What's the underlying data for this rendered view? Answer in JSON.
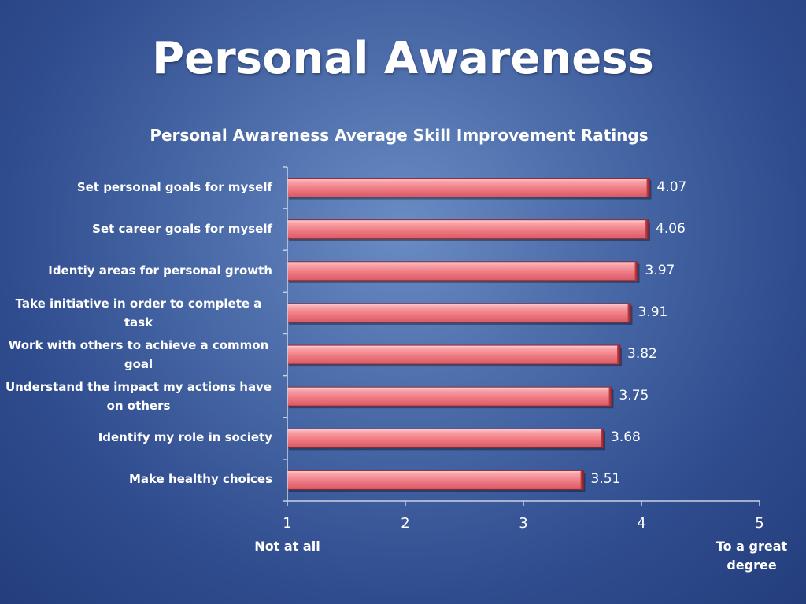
{
  "slide": {
    "title": "Personal Awareness"
  },
  "chart_data": {
    "type": "bar",
    "orientation": "horizontal",
    "title": "Personal Awareness Average Skill Improvement Ratings",
    "categories": [
      "Set personal goals for myself",
      "Set career goals for myself",
      "Identiy areas for personal growth",
      "Take initiative in order to complete a task",
      "Work with others to achieve a common goal",
      "Understand the impact my actions have on others",
      "Identify my role in society",
      "Make healthy choices"
    ],
    "values": [
      4.07,
      4.06,
      3.97,
      3.91,
      3.82,
      3.75,
      3.68,
      3.51
    ],
    "value_labels": [
      "4.07",
      "4.06",
      "3.97",
      "3.91",
      "3.82",
      "3.75",
      "3.68",
      "3.51"
    ],
    "xlim": [
      1,
      5
    ],
    "xticks": [
      "1",
      "2",
      "3",
      "4",
      "5"
    ],
    "scale_anchor_low": "Not at all",
    "scale_anchor_high": "To a great degree",
    "bar_color": "#f07f86",
    "bar_edge_color": "#8a2a33",
    "axis_color": "#c8d2e6",
    "grid": false,
    "legend": "none"
  }
}
